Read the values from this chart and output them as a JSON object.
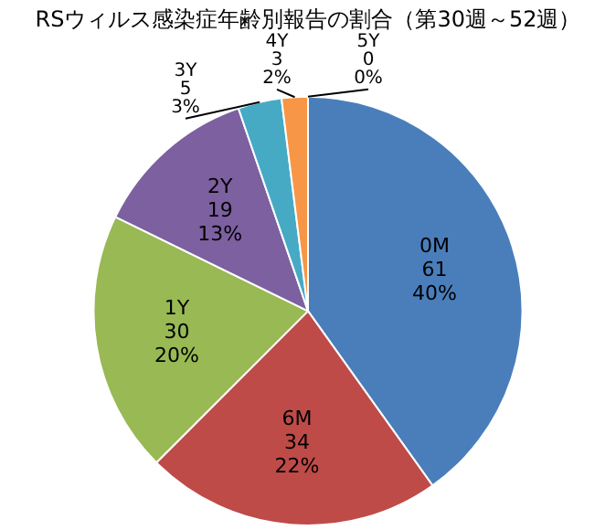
{
  "chart_data": {
    "type": "pie",
    "title": "RSウィルス感染症年齢別報告の割合（第30週～52週）",
    "categories": [
      "0M",
      "6M",
      "1Y",
      "2Y",
      "3Y",
      "4Y",
      "5Y"
    ],
    "values": [
      61,
      34,
      30,
      19,
      5,
      3,
      0
    ],
    "value_labels": [
      "61\n40%",
      "34\n22%",
      "30\n20%",
      "19\n13%",
      "5\n3%",
      "3\n2%",
      "0\n0%"
    ],
    "colors": [
      "#4a7ebb",
      "#be4b48",
      "#98b954",
      "#7d60a0",
      "#46aac5",
      "#f79646",
      "#4a7ebb"
    ],
    "legend": false
  }
}
